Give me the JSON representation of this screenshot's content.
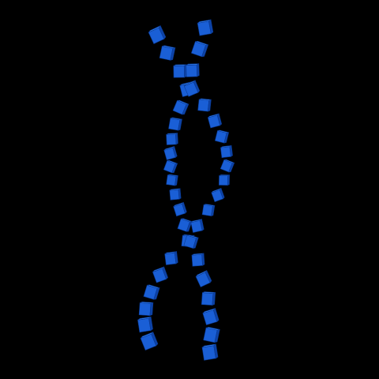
{
  "scene": {
    "description_visible_text": "",
    "background_color": "#000000",
    "cube_colors": {
      "top": "#2f7df0",
      "left": "#1a5fd6",
      "right": "#0d43a8",
      "edge": "#0a3a93"
    },
    "strands": [
      {
        "name": "strand-a",
        "cube_count": 22
      },
      {
        "name": "strand-b",
        "cube_count": 21
      }
    ]
  }
}
